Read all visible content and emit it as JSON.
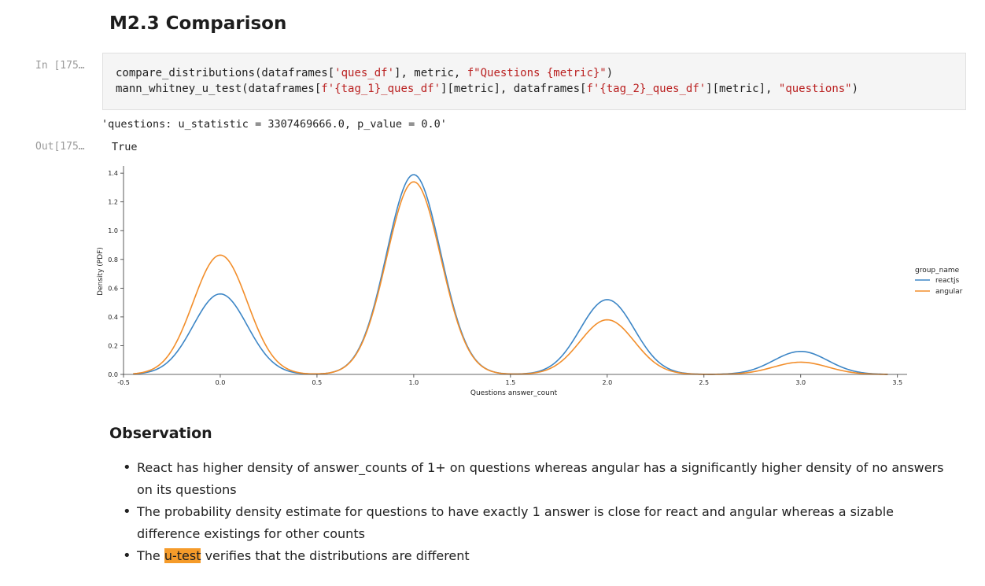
{
  "section": {
    "title": "M2.3 Comparison"
  },
  "cell": {
    "in_prompt": "In [175…",
    "out_prompt": "Out[175…",
    "code": {
      "line1": {
        "a": "compare_distributions(dataframes[",
        "s1": "'ques_df'",
        "b": "], metric, ",
        "s2": "f\"Questions {metric}\"",
        "c": ")"
      },
      "line2": {
        "a": "mann_whitney_u_test(dataframes[",
        "s1": "f'{tag_1}_ques_df'",
        "b": "][metric], dataframes[",
        "s2": "f'{tag_2}_ques_df'",
        "c": "][metric], ",
        "s3": "\"questions\"",
        "d": ")"
      }
    },
    "stdout": "'questions: u_statistic = 3307469666.0, p_value = 0.0'",
    "out_value": "True"
  },
  "chart_data": {
    "type": "line",
    "title": "",
    "xlabel": "Questions answer_count",
    "ylabel": "Density (PDF)",
    "xlim": [
      -0.5,
      3.55
    ],
    "ylim": [
      0,
      1.45
    ],
    "xticks": [
      "-0.5",
      "0.0",
      "0.5",
      "1.0",
      "1.5",
      "2.0",
      "2.5",
      "3.0",
      "3.5"
    ],
    "xtick_values": [
      -0.5,
      0.0,
      0.5,
      1.0,
      1.5,
      2.0,
      2.5,
      3.0,
      3.5
    ],
    "yticks": [
      "0.0",
      "0.2",
      "0.4",
      "0.6",
      "0.8",
      "1.0",
      "1.2",
      "1.4"
    ],
    "ytick_values": [
      0.0,
      0.2,
      0.4,
      0.6,
      0.8,
      1.0,
      1.2,
      1.4
    ],
    "legend_title": "group_name",
    "legend_position": "right",
    "grid": false,
    "kde_bandwidth": 0.14,
    "x_range": [
      -0.45,
      3.45
    ],
    "series": [
      {
        "name": "reactjs",
        "color": "#3d86c6",
        "peaks": [
          {
            "x": 0.0,
            "y": 0.56
          },
          {
            "x": 1.0,
            "y": 1.39
          },
          {
            "x": 2.0,
            "y": 0.52
          },
          {
            "x": 3.0,
            "y": 0.16
          }
        ]
      },
      {
        "name": "angular",
        "color": "#f28e2b",
        "peaks": [
          {
            "x": 0.0,
            "y": 0.83
          },
          {
            "x": 1.0,
            "y": 1.34
          },
          {
            "x": 2.0,
            "y": 0.38
          },
          {
            "x": 3.0,
            "y": 0.085
          }
        ]
      }
    ]
  },
  "observation": {
    "heading": "Observation",
    "bullets": [
      "React has higher density of answer_counts of 1+ on questions whereas angular has a significantly higher density of no answers on its questions",
      "The probability density estimate for questions to have exactly 1 answer is close for react and angular whereas a sizable difference existings for other counts"
    ],
    "bullet3": {
      "before": "The ",
      "highlight": "u-test",
      "after": " verifies that the distributions are different"
    }
  }
}
